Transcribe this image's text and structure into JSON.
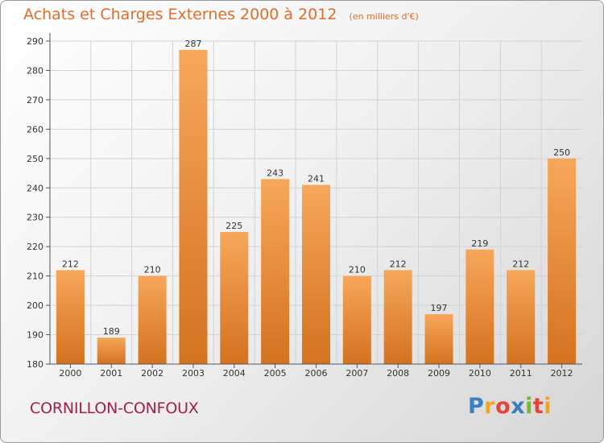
{
  "header": {
    "title": "Achats et Charges Externes 2000 à 2012",
    "subtitle": "(en milliers d'€)"
  },
  "footer": {
    "commune": "CORNILLON-CONFOUX",
    "logo": {
      "letters": [
        "P",
        "r",
        "o",
        "x",
        "i",
        "t",
        "i"
      ],
      "colors": [
        "#3a7fc1",
        "#f0a41f",
        "#e2453c",
        "#3a7fc1",
        "#7bb33c",
        "#e2453c",
        "#f0a41f"
      ]
    }
  },
  "chart_data": {
    "type": "bar",
    "title": "Achats et Charges Externes 2000 à 2012",
    "subtitle": "(en milliers d'€)",
    "categories": [
      "2000",
      "2001",
      "2002",
      "2003",
      "2004",
      "2005",
      "2006",
      "2007",
      "2008",
      "2009",
      "2010",
      "2011",
      "2012"
    ],
    "values": [
      212,
      189,
      210,
      287,
      225,
      243,
      241,
      210,
      212,
      197,
      219,
      212,
      250
    ],
    "ylim": [
      180,
      290
    ],
    "yticks": [
      180,
      190,
      200,
      210,
      220,
      230,
      240,
      250,
      260,
      270,
      280,
      290
    ],
    "grid": true,
    "colors": {
      "bar_light": "#f7a75a",
      "bar_dark": "#d4721f",
      "grid": "#d2d2d2",
      "axis": "#555555"
    }
  }
}
